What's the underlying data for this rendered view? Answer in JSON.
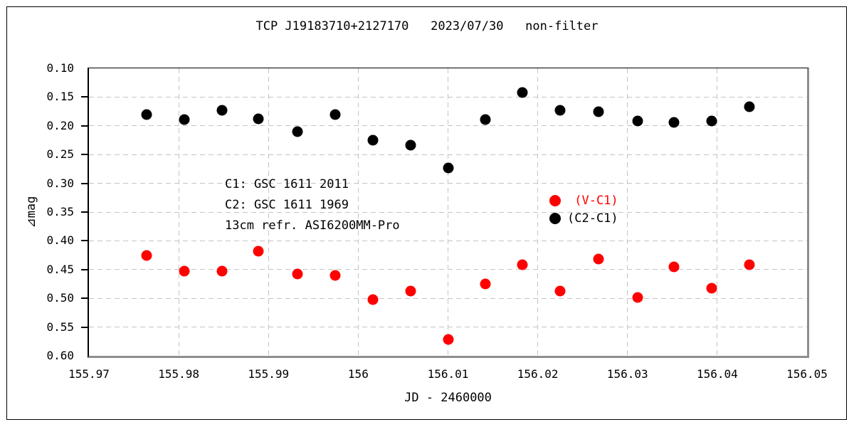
{
  "colors": {
    "red": "#ff0000",
    "black": "#000000",
    "grid": "#c4c4c4",
    "axis_gray": "#8e8e8e"
  },
  "chart_data": {
    "type": "scatter",
    "title": "TCP J19183710+2127170   2023/07/30   non-filter",
    "xlabel": "JD - 2460000",
    "ylabel": "⊿mag",
    "x_range": [
      155.97,
      156.05
    ],
    "y_range": [
      0.1,
      0.6
    ],
    "y_inverted": true,
    "grid": true,
    "legend_position": "middle-right",
    "xticks": {
      "values": [
        155.97,
        155.98,
        155.99,
        156.0,
        156.01,
        156.02,
        156.03,
        156.04,
        156.05
      ],
      "labels": [
        "155.97",
        "155.98",
        "155.99",
        "156",
        "156.01",
        "156.02",
        "156.03",
        "156.04",
        "156.05"
      ]
    },
    "yticks": {
      "values": [
        0.1,
        0.15,
        0.2,
        0.25,
        0.3,
        0.35,
        0.4,
        0.45,
        0.5,
        0.55,
        0.6
      ],
      "labels": [
        "0.10",
        "0.15",
        "0.20",
        "0.25",
        "0.30",
        "0.35",
        "0.40",
        "0.45",
        "0.50",
        "0.55",
        "0.60"
      ]
    },
    "x": [
      155.9764,
      155.9806,
      155.9848,
      155.9889,
      155.9932,
      155.9974,
      156.0016,
      156.0058,
      156.01,
      156.0142,
      156.0183,
      156.0225,
      156.0268,
      156.0311,
      156.0352,
      156.0394,
      156.0436
    ],
    "series": [
      {
        "id": "v-c1",
        "name": " (V-C1)",
        "color": "#ff0000",
        "values": [
          0.425,
          0.453,
          0.453,
          0.418,
          0.458,
          0.46,
          0.502,
          0.487,
          0.571,
          0.475,
          0.441,
          0.487,
          0.432,
          0.498,
          0.445,
          0.483,
          0.441
        ]
      },
      {
        "id": "c2-c1",
        "name": "(C2-C1)",
        "color": "#000000",
        "values": [
          0.181,
          0.189,
          0.173,
          0.188,
          0.21,
          0.181,
          0.225,
          0.234,
          0.273,
          0.189,
          0.142,
          0.173,
          0.176,
          0.191,
          0.194,
          0.192,
          0.167
        ]
      }
    ],
    "annotations": {
      "lines": [
        "C1: GSC 1611 2011",
        "C2: GSC 1611 1969",
        "13cm refr. ASI6200MM-Pro"
      ]
    }
  }
}
